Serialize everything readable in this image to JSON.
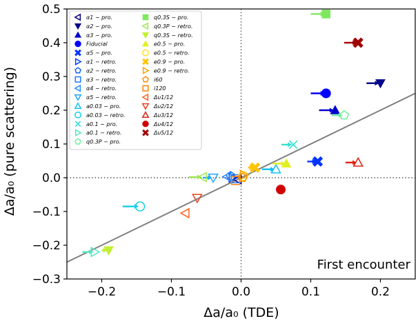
{
  "chart_data": {
    "type": "scatter",
    "xlabel": "Δa/a₀ (TDE)",
    "ylabel": "Δa/a₀ (pure scattering)",
    "xlim": [
      -0.25,
      0.25
    ],
    "ylim": [
      -0.3,
      0.5
    ],
    "xticks": [
      -0.2,
      -0.1,
      0.0,
      0.1,
      0.2
    ],
    "xtick_labels": [
      "−0.2",
      "−0.1",
      "0.0",
      "0.1",
      "0.2"
    ],
    "yticks": [
      -0.3,
      -0.2,
      -0.1,
      0.0,
      0.1,
      0.2,
      0.3,
      0.4,
      0.5
    ],
    "ytick_labels": [
      "−0.3",
      "−0.2",
      "−0.1",
      "0.0",
      "0.1",
      "0.2",
      "0.3",
      "0.4",
      "0.5"
    ],
    "annotation": "First encounter",
    "reference_lines": {
      "diagonal": {
        "from": [
          -0.25,
          -0.25
        ],
        "to": [
          0.25,
          0.25
        ],
        "color": "#808080"
      },
      "vertical_dotted_x": 0.0,
      "horizontal_dotted_y": 0.0
    },
    "legend_placement": "top-left",
    "legend_columns": [
      [
        {
          "label": "α1 − pro.",
          "marker": "tri-left-open",
          "color": "#00008b"
        },
        {
          "label": "α2 − pro.",
          "marker": "tri-down",
          "color": "#00008b"
        },
        {
          "label": "α3 − pro.",
          "marker": "tri-up",
          "color": "#0000cd"
        },
        {
          "label": "Fiducial",
          "marker": "circle",
          "color": "#0000ff"
        },
        {
          "label": "α5 − pro.",
          "marker": "x",
          "color": "#0033ff"
        },
        {
          "label": "α1 − retro.",
          "marker": "tri-right-open",
          "color": "#0040ff"
        },
        {
          "label": "α2 − retro.",
          "marker": "pentagon-open",
          "color": "#1060ff"
        },
        {
          "label": "α3 − retro.",
          "marker": "square-open",
          "color": "#1e78ff"
        },
        {
          "label": "α4 − retro.",
          "marker": "tri-left-open",
          "color": "#2090ff"
        },
        {
          "label": "α5 − retro.",
          "marker": "tri-down-open",
          "color": "#20a8ff"
        },
        {
          "label": "a0.03 − pro.",
          "marker": "tri-up-open",
          "color": "#10c0f0"
        },
        {
          "label": "a0.03 − retro.",
          "marker": "circle-open",
          "color": "#10d0e8"
        },
        {
          "label": "a0.1 − pro.",
          "marker": "x-open",
          "color": "#30e0d0"
        },
        {
          "label": "a0.1 − retro.",
          "marker": "tri-right-open",
          "color": "#50e8c0"
        },
        {
          "label": "q0.3P − pro.",
          "marker": "pentagon-open",
          "color": "#70f0a0"
        }
      ],
      [
        {
          "label": "q0.3S − pro.",
          "marker": "square",
          "color": "#7fe85f"
        },
        {
          "label": "q0.3P − retro.",
          "marker": "tri-left-open",
          "color": "#a0e850"
        },
        {
          "label": "q0.3S − retro.",
          "marker": "tri-down",
          "color": "#c0f030"
        },
        {
          "label": "e0.5 − pro.",
          "marker": "tri-up",
          "color": "#e0f020"
        },
        {
          "label": "e0.5 − retro.",
          "marker": "circle-open",
          "color": "#ffe020"
        },
        {
          "label": "e0.9 − pro.",
          "marker": "x",
          "color": "#ffc400"
        },
        {
          "label": "e0.9 − retro.",
          "marker": "tri-right-open",
          "color": "#ffa000"
        },
        {
          "label": "i60",
          "marker": "pentagon-open",
          "color": "#ff9000"
        },
        {
          "label": "i120",
          "marker": "square-open",
          "color": "#ff8000"
        },
        {
          "label": "Δυ1/12",
          "marker": "tri-left-open",
          "color": "#ff6020"
        },
        {
          "label": "Δυ2/12",
          "marker": "tri-down-open",
          "color": "#f04020"
        },
        {
          "label": "Δυ3/12",
          "marker": "tri-up-open",
          "color": "#e02010"
        },
        {
          "label": "Δυ4/12",
          "marker": "circle",
          "color": "#d00000"
        },
        {
          "label": "Δυ5/12",
          "marker": "x",
          "color": "#a00000"
        }
      ]
    ],
    "points": [
      {
        "name": "α1 − pro.",
        "x": -0.005,
        "y": -0.005,
        "marker": "tri-left-open",
        "color": "#00008b",
        "arrow_from": null
      },
      {
        "name": "α2 − pro.",
        "x": 0.2,
        "y": 0.28,
        "marker": "tri-down",
        "color": "#00008b",
        "arrow_from": 0.18
      },
      {
        "name": "α3 − pro.",
        "x": 0.135,
        "y": 0.2,
        "marker": "tri-up",
        "color": "#0000cd",
        "arrow_from": 0.112
      },
      {
        "name": "Fiducial",
        "x": 0.122,
        "y": 0.25,
        "marker": "circle",
        "color": "#0000ff",
        "arrow_from": 0.1
      },
      {
        "name": "α5 − pro.",
        "x": 0.11,
        "y": 0.048,
        "marker": "x",
        "color": "#0033ff",
        "arrow_from": 0.095
      },
      {
        "name": "α1 − retro.",
        "x": -0.012,
        "y": 0.0,
        "marker": "tri-right-open",
        "color": "#0040ff",
        "arrow_from": null
      },
      {
        "name": "α2 − retro.",
        "x": -0.015,
        "y": 0.005,
        "marker": "pentagon-open",
        "color": "#1060ff",
        "arrow_from": null
      },
      {
        "name": "α3 − retro.",
        "x": -0.008,
        "y": -0.003,
        "marker": "square-open",
        "color": "#1e78ff",
        "arrow_from": null
      },
      {
        "name": "α4 − retro.",
        "x": -0.02,
        "y": 0.003,
        "marker": "tri-left-open",
        "color": "#2090ff",
        "arrow_from": null
      },
      {
        "name": "α5 − retro.",
        "x": -0.04,
        "y": 0.0,
        "marker": "tri-down-open",
        "color": "#20a8ff",
        "arrow_from": -0.055
      },
      {
        "name": "a0.03 − pro.",
        "x": 0.05,
        "y": 0.025,
        "marker": "tri-up-open",
        "color": "#10c0f0",
        "arrow_from": 0.03
      },
      {
        "name": "a0.03 − retro.",
        "x": -0.145,
        "y": -0.085,
        "marker": "circle-open",
        "color": "#10d0e8",
        "arrow_from": -0.17
      },
      {
        "name": "a0.1 − pro.",
        "x": 0.075,
        "y": 0.098,
        "marker": "x-open",
        "color": "#30e0d0",
        "arrow_from": 0.058
      },
      {
        "name": "a0.1 − retro.",
        "x": -0.21,
        "y": -0.22,
        "marker": "tri-right-open",
        "color": "#50e8c0",
        "arrow_from": -0.228
      },
      {
        "name": "q0.3P − pro.",
        "x": 0.148,
        "y": 0.185,
        "marker": "pentagon-open",
        "color": "#70f0a0",
        "arrow_from": 0.13
      },
      {
        "name": "q0.3S − pro.",
        "x": 0.122,
        "y": 0.485,
        "marker": "square",
        "color": "#7fe85f",
        "arrow_from": 0.1
      },
      {
        "name": "q0.3P − retro.",
        "x": -0.055,
        "y": 0.002,
        "marker": "tri-left-open",
        "color": "#a0e850",
        "arrow_from": -0.075
      },
      {
        "name": "q0.3S − retro.",
        "x": -0.19,
        "y": -0.215,
        "marker": "tri-down",
        "color": "#c0f030",
        "arrow_from": -0.2
      },
      {
        "name": "e0.5 − pro.",
        "x": 0.065,
        "y": 0.042,
        "marker": "tri-up",
        "color": "#e0f020",
        "arrow_from": 0.045
      },
      {
        "name": "e0.5 − retro.",
        "x": 0.003,
        "y": 0.005,
        "marker": "circle-open",
        "color": "#ffe020",
        "arrow_from": null
      },
      {
        "name": "e0.9 − pro.",
        "x": 0.02,
        "y": 0.03,
        "marker": "x",
        "color": "#ffc400",
        "arrow_from": 0.01
      },
      {
        "name": "e0.9 − retro.",
        "x": 0.004,
        "y": 0.008,
        "marker": "tri-right-open",
        "color": "#ffa000",
        "arrow_from": null
      },
      {
        "name": "i60",
        "x": 0.002,
        "y": 0.0,
        "marker": "pentagon-open",
        "color": "#ff9000",
        "arrow_from": null
      },
      {
        "name": "i120",
        "x": -0.008,
        "y": -0.008,
        "marker": "square-open",
        "color": "#ff8000",
        "arrow_from": null
      },
      {
        "name": "Δυ1/12",
        "x": -0.08,
        "y": -0.105,
        "marker": "tri-left-open",
        "color": "#ff6020",
        "arrow_from": null
      },
      {
        "name": "Δυ2/12",
        "x": -0.063,
        "y": -0.06,
        "marker": "tri-down-open",
        "color": "#f04020",
        "arrow_from": null
      },
      {
        "name": "Δυ3/12",
        "x": 0.168,
        "y": 0.045,
        "marker": "tri-up-open",
        "color": "#e02010",
        "arrow_from": 0.15
      },
      {
        "name": "Δυ4/12",
        "x": 0.057,
        "y": -0.035,
        "marker": "circle",
        "color": "#d00000",
        "arrow_from": null
      },
      {
        "name": "Δυ5/12",
        "x": 0.168,
        "y": 0.4,
        "marker": "x",
        "color": "#a00000",
        "arrow_from": 0.148
      }
    ]
  }
}
